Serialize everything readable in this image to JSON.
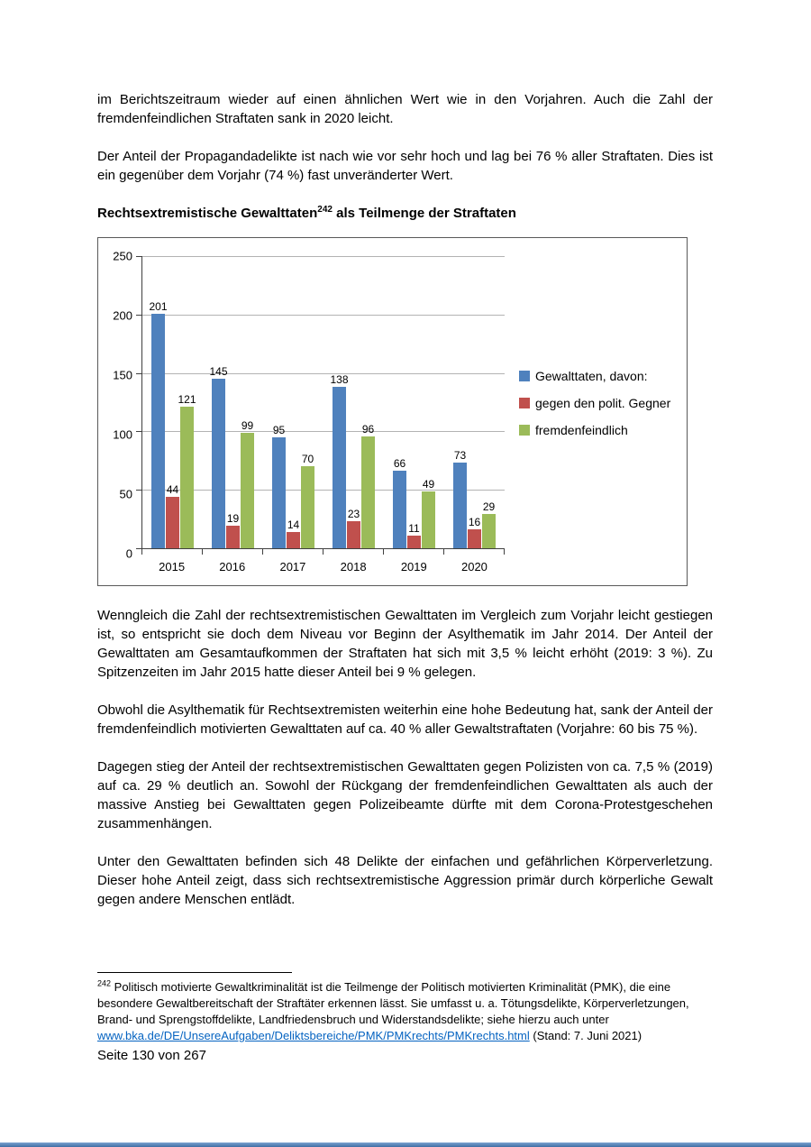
{
  "content": {
    "para_intro": "im Berichtszeitraum wieder auf einen ähnlichen Wert wie in den Vorjahren. Auch die Zahl der fremdenfeindlichen Straftaten sank in 2020 leicht.",
    "para_propaganda": "Der Anteil der Propagandadelikte ist nach wie vor sehr hoch und lag bei 76 % aller Straftaten. Dies ist ein gegenüber dem Vorjahr (74 %) fast unveränderter Wert.",
    "heading": {
      "text": "Rechtsextremistische Gewalttaten",
      "footnote_ref": "242",
      "text_after": "als Teilmenge der Straftaten"
    },
    "para_wenngleich": "Wenngleich die Zahl der rechtsextremistischen Gewalttaten im Vergleich zum Vorjahr leicht gestiegen ist, so entspricht sie doch dem Niveau vor Beginn der Asylthematik im Jahr 2014. Der Anteil der Gewalttaten am Gesamtaufkommen der Straftaten hat sich mit 3,5 % leicht erhöht (2019: 3 %). Zu Spitzenzeiten im Jahr 2015 hatte dieser Anteil bei 9 % gelegen.",
    "para_obwohl": "Obwohl die Asylthematik für Rechtsextremisten weiterhin eine hohe Bedeutung hat, sank der Anteil der fremdenfeindlich motivierten Gewalttaten auf ca. 40 % aller Gewaltstraftaten (Vorjahre: 60 bis 75 %).",
    "para_dagegen": "Dagegen stieg der Anteil der rechtsextremistischen Gewalttaten gegen Polizisten von ca. 7,5 % (2019) auf ca. 29 % deutlich an. Sowohl der Rückgang der fremdenfeindlichen Gewalttaten als auch der massive Anstieg bei Gewalttaten gegen Polizeibeamte dürfte mit dem Corona-Protestgeschehen zusammenhängen.",
    "para_unter": "Unter den Gewalttaten befinden sich 48 Delikte der einfachen und gefährlichen Körperverletzung. Dieser hohe Anteil zeigt, dass sich rechtsextremistische Aggression primär durch körperliche Gewalt gegen andere Menschen entlädt.",
    "footnote": {
      "ref": "242",
      "text": "Politisch motivierte Gewaltkriminalität ist die Teilmenge der Politisch motivierten Kriminalität (PMK), die eine besondere Gewaltbereitschaft der Straftäter erkennen lässt. Sie umfasst u. a. Tötungsdelikte, Körperverletzungen, Brand- und Sprengstoffdelikte, Landfriedensbruch und Widerstandsdelikte; siehe hierzu auch unter",
      "link_text": "www.bka.de/DE/UnsereAufgaben/Deliktsbereiche/PMK/PMKrechts/PMKrechts.html",
      "suffix": "(Stand: 7. Juni 2021)"
    },
    "page_number": "Seite 130 von 267"
  },
  "chart_data": {
    "type": "bar",
    "categories": [
      "2015",
      "2016",
      "2017",
      "2018",
      "2019",
      "2020"
    ],
    "series": [
      {
        "name": "Gewalttaten, davon:",
        "color": "#4f81bd",
        "values": [
          201,
          145,
          95,
          138,
          66,
          73
        ]
      },
      {
        "name": "gegen den polit. Gegner",
        "color": "#c0504d",
        "values": [
          44,
          19,
          14,
          23,
          11,
          16
        ]
      },
      {
        "name": "fremdenfeindlich",
        "color": "#9bbb59",
        "values": [
          121,
          99,
          70,
          96,
          49,
          29
        ]
      }
    ],
    "title": "",
    "xlabel": "",
    "ylabel": "",
    "ylim": [
      0,
      250
    ],
    "yticks": [
      0,
      50,
      100,
      150,
      200,
      250
    ],
    "grid": true,
    "legend_position": "right"
  }
}
